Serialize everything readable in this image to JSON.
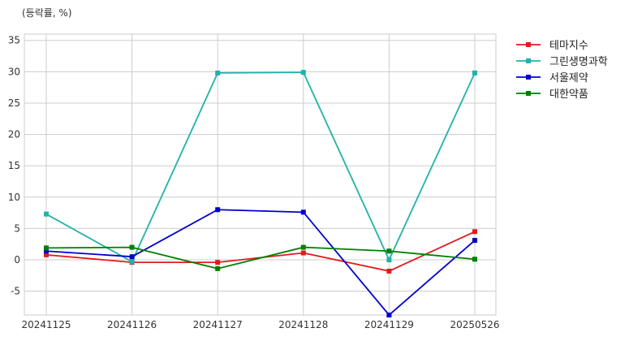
{
  "chart_data": {
    "type": "line",
    "title": "",
    "unit_label": "(등락률, %)",
    "xlabel": "",
    "ylabel": "",
    "categories": [
      "20241125",
      "20241126",
      "20241127",
      "20241128",
      "20241129",
      "20250526"
    ],
    "ylim": [
      -8.8,
      36
    ],
    "yticks": [
      -5,
      0,
      5,
      10,
      15,
      20,
      25,
      30,
      35
    ],
    "grid": true,
    "legend_position": "top-right outside",
    "series": [
      {
        "name": "테마지수",
        "color": "#e31a1c",
        "values": [
          0.8,
          -0.4,
          -0.4,
          1.1,
          -1.8,
          4.5
        ]
      },
      {
        "name": "그린생명과학",
        "color": "#20b2aa",
        "values": [
          7.3,
          -0.3,
          29.8,
          29.9,
          0.0,
          29.8
        ]
      },
      {
        "name": "서울제약",
        "color": "#0000cc",
        "values": [
          1.4,
          0.5,
          8.0,
          7.6,
          -8.8,
          3.1
        ]
      },
      {
        "name": "대한약품",
        "color": "#008000",
        "values": [
          1.9,
          2.0,
          -1.4,
          2.0,
          1.4,
          0.1
        ]
      }
    ]
  }
}
